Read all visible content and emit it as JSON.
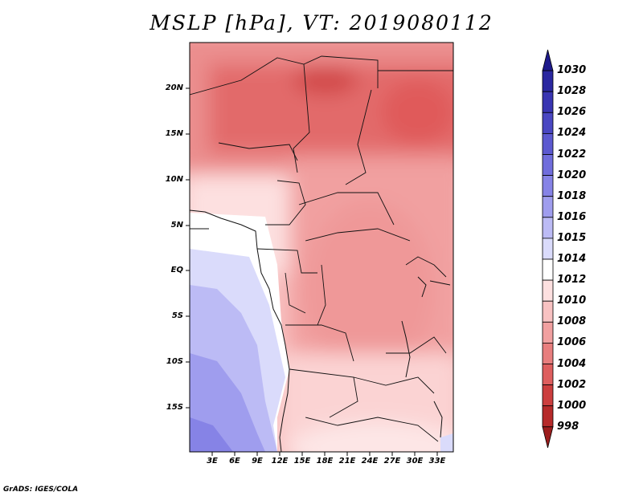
{
  "title": "MSLP [hPa], VT: 2019080112",
  "footer": "GrADS: IGES/COLA",
  "y_labels": [
    "20N",
    "15N",
    "10N",
    "5N",
    "EQ",
    "5S",
    "10S",
    "15S"
  ],
  "x_labels": [
    "3E",
    "6E",
    "9E",
    "12E",
    "15E",
    "18E",
    "21E",
    "24E",
    "27E",
    "30E",
    "33E"
  ],
  "colorbar": {
    "labels": [
      "1030",
      "1028",
      "1026",
      "1024",
      "1022",
      "1020",
      "1018",
      "1016",
      "1015",
      "1014",
      "1012",
      "1010",
      "1008",
      "1006",
      "1004",
      "1002",
      "1000",
      "998"
    ],
    "colors": [
      "#1e1a8c",
      "#2a27a0",
      "#3935b2",
      "#4a47c2",
      "#5c59d0",
      "#706ddc",
      "#8683e6",
      "#9f9dee",
      "#bcbbf5",
      "#dadbfb",
      "#ffffff",
      "#fde0e0",
      "#f8c2c2",
      "#f1a0a0",
      "#e87e7e",
      "#de5e5e",
      "#cc3e3e",
      "#b62a2a",
      "#9c1d1d"
    ]
  },
  "map": {
    "extent": {
      "lon": [
        0,
        35
      ],
      "lat": [
        -20,
        25
      ]
    },
    "variable": "MSLP"
  }
}
